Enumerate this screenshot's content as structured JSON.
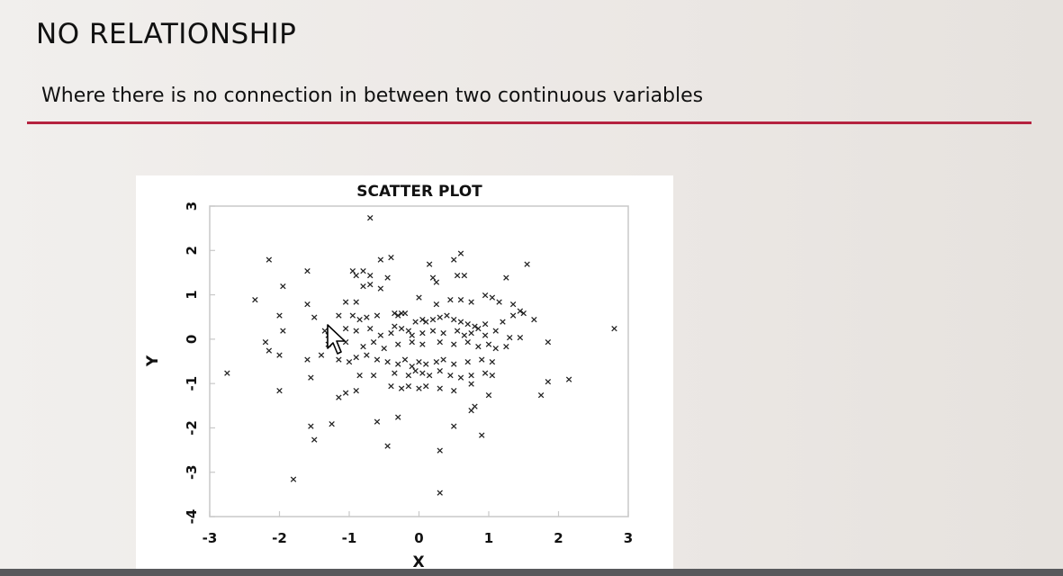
{
  "slide": {
    "title": "NO RELATIONSHIP",
    "subtitle": "Where there is no connection in between two continuous variables"
  },
  "colors": {
    "accent_rule": "#b5223f",
    "bottom_bar": "#58595c",
    "marker": "#222222"
  },
  "icons": {
    "cursor": "mouse-pointer-icon"
  },
  "chart_data": {
    "type": "scatter",
    "title": "SCATTER PLOT",
    "xlabel": "X",
    "ylabel": "Y",
    "xlim": [
      -3,
      3
    ],
    "ylim": [
      -4,
      3
    ],
    "xticks": [
      -3,
      -2,
      -1,
      0,
      1,
      2,
      3
    ],
    "yticks": [
      3,
      2,
      1,
      0,
      -1,
      -2,
      -3,
      -4
    ],
    "marker": "x",
    "grid": false,
    "legend": "none",
    "points": [
      [
        -0.7,
        2.75
      ],
      [
        -2.15,
        1.8
      ],
      [
        -1.95,
        1.2
      ],
      [
        -1.6,
        1.55
      ],
      [
        -0.95,
        1.55
      ],
      [
        -0.9,
        1.45
      ],
      [
        -0.8,
        1.55
      ],
      [
        -0.7,
        1.45
      ],
      [
        -0.55,
        1.8
      ],
      [
        -0.4,
        1.85
      ],
      [
        -0.8,
        1.2
      ],
      [
        -0.7,
        1.25
      ],
      [
        -0.55,
        1.15
      ],
      [
        -0.45,
        1.4
      ],
      [
        0.15,
        1.7
      ],
      [
        0.2,
        1.4
      ],
      [
        0.25,
        1.3
      ],
      [
        0.5,
        1.8
      ],
      [
        0.6,
        1.95
      ],
      [
        0.55,
        1.45
      ],
      [
        0.65,
        1.45
      ],
      [
        1.25,
        1.4
      ],
      [
        1.55,
        1.7
      ],
      [
        -2.35,
        0.9
      ],
      [
        -1.6,
        0.8
      ],
      [
        -1.05,
        0.85
      ],
      [
        -0.9,
        0.85
      ],
      [
        0.0,
        0.95
      ],
      [
        0.25,
        0.8
      ],
      [
        0.45,
        0.9
      ],
      [
        0.6,
        0.9
      ],
      [
        0.75,
        0.85
      ],
      [
        0.95,
        1.0
      ],
      [
        1.05,
        0.95
      ],
      [
        1.15,
        0.85
      ],
      [
        1.35,
        0.8
      ],
      [
        1.45,
        0.65
      ],
      [
        -2.0,
        0.55
      ],
      [
        -1.5,
        0.5
      ],
      [
        -1.15,
        0.55
      ],
      [
        -0.95,
        0.55
      ],
      [
        -0.85,
        0.45
      ],
      [
        -0.75,
        0.5
      ],
      [
        -0.6,
        0.55
      ],
      [
        -0.35,
        0.6
      ],
      [
        -0.3,
        0.55
      ],
      [
        -0.25,
        0.6
      ],
      [
        -0.2,
        0.6
      ],
      [
        -0.05,
        0.4
      ],
      [
        0.05,
        0.45
      ],
      [
        0.1,
        0.4
      ],
      [
        0.2,
        0.45
      ],
      [
        0.3,
        0.5
      ],
      [
        0.4,
        0.55
      ],
      [
        0.5,
        0.45
      ],
      [
        0.6,
        0.4
      ],
      [
        0.7,
        0.35
      ],
      [
        0.8,
        0.3
      ],
      [
        0.95,
        0.35
      ],
      [
        1.2,
        0.4
      ],
      [
        1.35,
        0.55
      ],
      [
        1.5,
        0.6
      ],
      [
        1.65,
        0.45
      ],
      [
        -1.95,
        0.2
      ],
      [
        -1.35,
        0.2
      ],
      [
        -1.3,
        0.1
      ],
      [
        -1.05,
        0.25
      ],
      [
        -0.9,
        0.2
      ],
      [
        -0.7,
        0.25
      ],
      [
        -0.55,
        0.1
      ],
      [
        -0.4,
        0.15
      ],
      [
        -0.35,
        0.3
      ],
      [
        -0.25,
        0.25
      ],
      [
        -0.15,
        0.2
      ],
      [
        -0.1,
        0.1
      ],
      [
        0.05,
        0.15
      ],
      [
        0.2,
        0.2
      ],
      [
        0.35,
        0.15
      ],
      [
        0.55,
        0.2
      ],
      [
        0.65,
        0.1
      ],
      [
        0.75,
        0.15
      ],
      [
        0.85,
        0.25
      ],
      [
        0.95,
        0.1
      ],
      [
        1.1,
        0.2
      ],
      [
        1.3,
        0.05
      ],
      [
        1.45,
        0.05
      ],
      [
        1.85,
        -0.05
      ],
      [
        2.8,
        0.25
      ],
      [
        -2.2,
        -0.05
      ],
      [
        -1.3,
        -0.1
      ],
      [
        -1.05,
        -0.05
      ],
      [
        -0.8,
        -0.15
      ],
      [
        -0.65,
        -0.05
      ],
      [
        -0.5,
        -0.2
      ],
      [
        -0.3,
        -0.1
      ],
      [
        -0.1,
        -0.05
      ],
      [
        0.05,
        -0.1
      ],
      [
        0.3,
        -0.05
      ],
      [
        0.5,
        -0.1
      ],
      [
        0.7,
        -0.05
      ],
      [
        0.85,
        -0.15
      ],
      [
        1.0,
        -0.1
      ],
      [
        1.1,
        -0.2
      ],
      [
        1.25,
        -0.15
      ],
      [
        -2.15,
        -0.25
      ],
      [
        -2.0,
        -0.35
      ],
      [
        -1.6,
        -0.45
      ],
      [
        -1.4,
        -0.35
      ],
      [
        -1.15,
        -0.45
      ],
      [
        -1.0,
        -0.5
      ],
      [
        -0.9,
        -0.4
      ],
      [
        -0.75,
        -0.35
      ],
      [
        -0.6,
        -0.45
      ],
      [
        -0.45,
        -0.5
      ],
      [
        -0.3,
        -0.55
      ],
      [
        -0.2,
        -0.45
      ],
      [
        -0.1,
        -0.6
      ],
      [
        0.0,
        -0.5
      ],
      [
        0.1,
        -0.55
      ],
      [
        0.25,
        -0.5
      ],
      [
        0.35,
        -0.45
      ],
      [
        0.5,
        -0.55
      ],
      [
        0.7,
        -0.5
      ],
      [
        0.9,
        -0.45
      ],
      [
        1.05,
        -0.5
      ],
      [
        -2.75,
        -0.75
      ],
      [
        -1.55,
        -0.85
      ],
      [
        -0.85,
        -0.8
      ],
      [
        -0.65,
        -0.8
      ],
      [
        -0.35,
        -0.75
      ],
      [
        -0.15,
        -0.8
      ],
      [
        -0.05,
        -0.7
      ],
      [
        0.05,
        -0.75
      ],
      [
        0.15,
        -0.8
      ],
      [
        0.3,
        -0.7
      ],
      [
        0.45,
        -0.8
      ],
      [
        0.6,
        -0.85
      ],
      [
        0.75,
        -0.8
      ],
      [
        0.95,
        -0.75
      ],
      [
        1.05,
        -0.8
      ],
      [
        1.85,
        -0.95
      ],
      [
        2.15,
        -0.9
      ],
      [
        -2.0,
        -1.15
      ],
      [
        -1.15,
        -1.3
      ],
      [
        -1.05,
        -1.2
      ],
      [
        -0.9,
        -1.15
      ],
      [
        -0.4,
        -1.05
      ],
      [
        -0.25,
        -1.1
      ],
      [
        -0.15,
        -1.05
      ],
      [
        0.0,
        -1.1
      ],
      [
        0.1,
        -1.05
      ],
      [
        0.3,
        -1.1
      ],
      [
        0.5,
        -1.15
      ],
      [
        0.75,
        -1.0
      ],
      [
        1.0,
        -1.25
      ],
      [
        1.75,
        -1.25
      ],
      [
        -1.55,
        -1.95
      ],
      [
        -1.25,
        -1.9
      ],
      [
        -0.6,
        -1.85
      ],
      [
        -0.3,
        -1.75
      ],
      [
        0.5,
        -1.95
      ],
      [
        0.75,
        -1.6
      ],
      [
        0.8,
        -1.5
      ],
      [
        0.9,
        -2.15
      ],
      [
        -1.5,
        -2.25
      ],
      [
        -0.45,
        -2.4
      ],
      [
        0.3,
        -2.5
      ],
      [
        -1.8,
        -3.15
      ],
      [
        0.3,
        -3.45
      ]
    ]
  }
}
